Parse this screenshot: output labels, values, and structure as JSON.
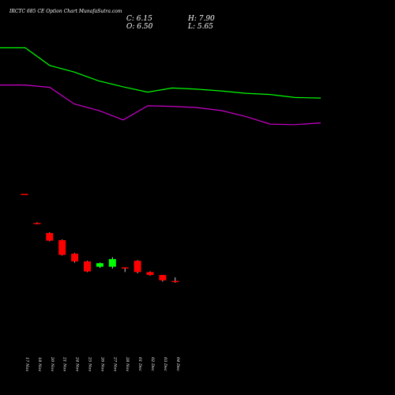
{
  "header": {
    "title": "IRCTC 685 CE Option  Chart MunafaSutra.com",
    "close": "C: 6.15",
    "high": "H: 7.90",
    "open": "O: 6.50",
    "low": "L: 5.65"
  },
  "chart_data": {
    "type": "candlestick",
    "title": "IRCTC 685 CE Option  Chart MunafaSutra.com",
    "background": "#000000",
    "up_color": "#00ff00",
    "down_color": "#ff0000",
    "candles": [
      {
        "date": "17 Nov",
        "open": 27.3,
        "high": 27.3,
        "low": 27.1,
        "close": 27.1
      },
      {
        "date": "18 Nov",
        "open": 22.4,
        "high": 22.5,
        "low": 22.2,
        "close": 22.3
      },
      {
        "date": "20 Nov",
        "open": 20.7,
        "high": 20.8,
        "low": 19.3,
        "close": 19.4
      },
      {
        "date": "21 Nov",
        "open": 19.5,
        "high": 19.6,
        "low": 16.9,
        "close": 17.0
      },
      {
        "date": "24 Nov",
        "open": 17.2,
        "high": 17.3,
        "low": 15.7,
        "close": 15.9
      },
      {
        "date": "25 Nov",
        "open": 15.9,
        "high": 16.0,
        "low": 14.1,
        "close": 14.2
      },
      {
        "date": "26 Nov",
        "open": 15.0,
        "high": 15.7,
        "low": 14.8,
        "close": 15.6
      },
      {
        "date": "27 Nov",
        "open": 15.0,
        "high": 16.6,
        "low": 14.7,
        "close": 16.3
      },
      {
        "date": "28 Nov",
        "open": 14.9,
        "high": 14.9,
        "low": 14.1,
        "close": 14.7
      },
      {
        "date": "01 Dec",
        "open": 16.0,
        "high": 16.1,
        "low": 13.9,
        "close": 14.1
      },
      {
        "date": "02 Dec",
        "open": 14.1,
        "high": 14.2,
        "low": 13.5,
        "close": 13.6
      },
      {
        "date": "03 Dec",
        "open": 13.6,
        "high": 13.6,
        "low": 12.5,
        "close": 12.7
      },
      {
        "date": "04 Dec",
        "open": 12.6,
        "high": 13.2,
        "low": 12.3,
        "close": 12.4
      }
    ],
    "series": [
      {
        "color": "#00ff00",
        "values": [
          52.0,
          52.0,
          49.0,
          47.9,
          46.4,
          45.4,
          44.5,
          45.2,
          45.0,
          44.7,
          44.3,
          44.1,
          43.6,
          43.5
        ]
      },
      {
        "color": "#cc00cc",
        "values": [
          45.7,
          45.7,
          45.3,
          42.5,
          41.4,
          39.8,
          42.2,
          42.1,
          41.9,
          41.4,
          40.4,
          39.1,
          39.0,
          39.3
        ]
      }
    ],
    "ylim": [
      0,
      57.4
    ]
  }
}
